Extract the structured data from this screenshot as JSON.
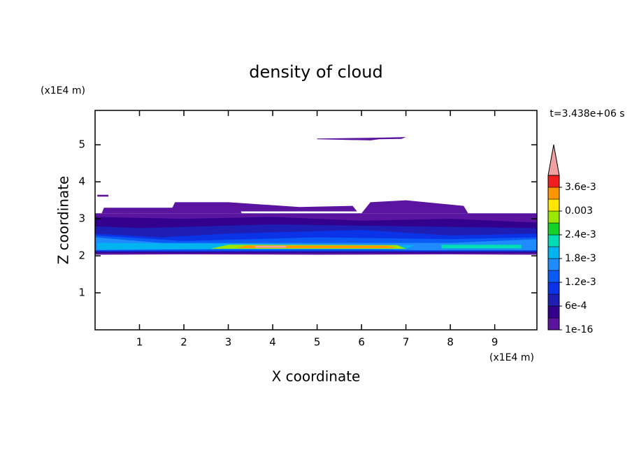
{
  "chart_data": {
    "type": "contour",
    "title": "density of cloud",
    "xlabel": "X coordinate",
    "ylabel": "Z coordinate",
    "x_unit": "(x1E4 m)",
    "y_unit": "(x1E4 m)",
    "annotation": "t=3.438e+06 s",
    "xlim": [
      0,
      9.95
    ],
    "ylim": [
      0,
      5.93
    ],
    "xticks": [
      1,
      2,
      3,
      4,
      5,
      6,
      7,
      8,
      9
    ],
    "yticks": [
      1,
      2,
      3,
      4,
      5
    ],
    "levels": [
      1e-16,
      0.0003,
      0.0006,
      0.0009,
      0.0012,
      0.0015,
      0.0018,
      0.0021,
      0.0024,
      0.0027,
      0.003,
      0.0033,
      0.0036
    ],
    "colors": [
      "#5a14a0",
      "#32008c",
      "#1e1eb4",
      "#0a32e6",
      "#0a5af5",
      "#1e8cff",
      "#00b4f0",
      "#00dcb4",
      "#14d228",
      "#9be600",
      "#ffe600",
      "#ff9600",
      "#f01e1e"
    ],
    "over_color": "#f0a0a0",
    "colorbar_ticks": [
      1e-16,
      {
        "value": 0.0006,
        "label": "6e-4"
      },
      {
        "value": 0.0012,
        "label": "1.2e-3"
      },
      {
        "value": 0.0018,
        "label": "1.8e-3"
      },
      {
        "value": 0.0024,
        "label": "2.4e-3"
      },
      0.003,
      {
        "value": 0.0036,
        "label": "3.6e-3"
      }
    ],
    "regions": [
      {
        "value": 1e-16,
        "x": [
          0,
          2,
          5,
          8,
          9.95,
          9.95,
          0
        ],
        "z": [
          2.03,
          2.04,
          2.03,
          2.04,
          2.03,
          3.15,
          3.15
        ]
      },
      {
        "value": 1e-16,
        "x": [
          0.15,
          3.3,
          3.25,
          0.2
        ],
        "z": [
          3.15,
          3.15,
          3.3,
          3.3
        ]
      },
      {
        "value": 1e-16,
        "x": [
          1.7,
          5.9,
          5.8,
          4.6,
          3.0,
          1.8
        ],
        "z": [
          3.2,
          3.2,
          3.35,
          3.32,
          3.45,
          3.45
        ]
      },
      {
        "value": 1e-16,
        "x": [
          6.0,
          8.4,
          8.3,
          7.0,
          6.2
        ],
        "z": [
          3.15,
          3.15,
          3.35,
          3.5,
          3.45
        ]
      },
      {
        "value": 1e-16,
        "x": [
          0.05,
          0.3,
          0.3,
          0.05
        ],
        "z": [
          3.6,
          3.6,
          3.65,
          3.65
        ]
      },
      {
        "value": 1e-16,
        "x": [
          5.0,
          6.3,
          7.0,
          6.9,
          6.4,
          6.2,
          5.0
        ],
        "z": [
          5.17,
          5.19,
          5.21,
          5.16,
          5.15,
          5.12,
          5.15
        ]
      },
      {
        "value": 0.0003,
        "x": [
          0,
          9.95,
          9.95,
          8.0,
          6.0,
          4.0,
          2.0,
          0
        ],
        "z": [
          2.08,
          2.08,
          2.9,
          3.0,
          2.95,
          3.05,
          3.0,
          3.05
        ]
      },
      {
        "value": 0.0006,
        "x": [
          0,
          9.95,
          9.95,
          7,
          4,
          1,
          0
        ],
        "z": [
          2.1,
          2.1,
          2.75,
          2.8,
          2.85,
          2.75,
          2.8
        ]
      },
      {
        "value": 0.0009,
        "x": [
          0,
          9.95,
          9.95,
          8,
          6,
          3,
          1.5,
          0
        ],
        "z": [
          2.12,
          2.12,
          2.6,
          2.55,
          2.7,
          2.6,
          2.5,
          2.6
        ]
      },
      {
        "value": 0.0012,
        "x": [
          0,
          9.95,
          9.95,
          8,
          5,
          2,
          0
        ],
        "z": [
          2.14,
          2.14,
          2.5,
          2.45,
          2.5,
          2.4,
          2.55
        ]
      },
      {
        "value": 0.0015,
        "x": [
          0,
          2.5,
          6.5,
          7.3,
          8.2,
          9.95,
          9.95,
          8.0,
          5,
          1.5,
          0
        ],
        "z": [
          2.15,
          2.18,
          2.18,
          2.15,
          2.15,
          2.15,
          2.45,
          2.35,
          2.35,
          2.35,
          2.5
        ]
      },
      {
        "value": 0.0018,
        "x": [
          0.05,
          2.2,
          7.0,
          7.2,
          2.5,
          0.05
        ],
        "z": [
          2.17,
          2.18,
          2.18,
          2.28,
          2.33,
          2.35
        ]
      },
      {
        "value": 0.0021,
        "x": [
          7.8,
          9.6,
          9.6,
          7.8
        ],
        "z": [
          2.2,
          2.2,
          2.3,
          2.3
        ]
      },
      {
        "value": 0.0027,
        "x": [
          2.6,
          7.0,
          6.8,
          3.0
        ],
        "z": [
          2.19,
          2.19,
          2.29,
          2.3
        ]
      },
      {
        "value": 0.0033,
        "x": [
          3.2,
          6.8,
          6.6,
          3.4
        ],
        "z": [
          2.21,
          2.21,
          2.27,
          2.28
        ]
      },
      {
        "value": 0.0039,
        "x": [
          3.6,
          4.3,
          4.3,
          3.6
        ],
        "z": [
          2.22,
          2.22,
          2.27,
          2.27
        ]
      }
    ]
  }
}
